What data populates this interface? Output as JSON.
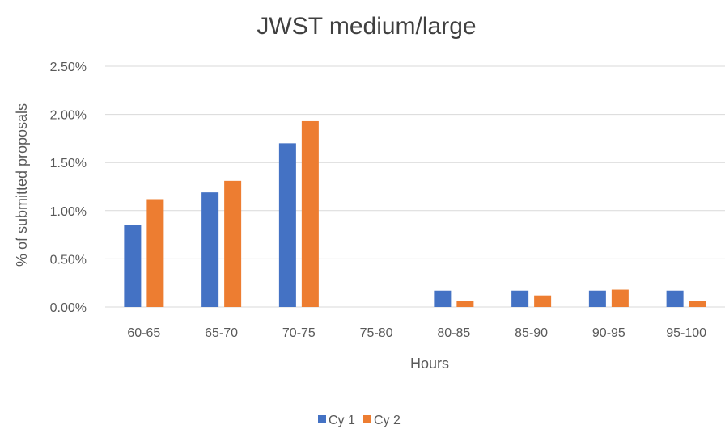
{
  "chart_data": {
    "type": "bar",
    "title": "JWST medium/large",
    "xlabel": "Hours",
    "ylabel": "% of submitted proposals",
    "categories": [
      "60-65",
      "65-70",
      "70-75",
      "75-80",
      "80-85",
      "85-90",
      "90-95",
      "95-100"
    ],
    "series": [
      {
        "name": "Cy 1",
        "color": "#4472c4",
        "values": [
          0.85,
          1.19,
          1.7,
          0,
          0.17,
          0.17,
          0.17,
          0.17
        ]
      },
      {
        "name": "Cy 2",
        "color": "#ed7d31",
        "values": [
          1.12,
          1.31,
          1.93,
          0,
          0.06,
          0.12,
          0.18,
          0.06
        ]
      }
    ],
    "ylim": [
      0,
      2.5
    ],
    "yticks": [
      "0.00%",
      "0.50%",
      "1.00%",
      "1.50%",
      "2.00%",
      "2.50%"
    ],
    "grid": true,
    "legend_position": "bottom"
  }
}
